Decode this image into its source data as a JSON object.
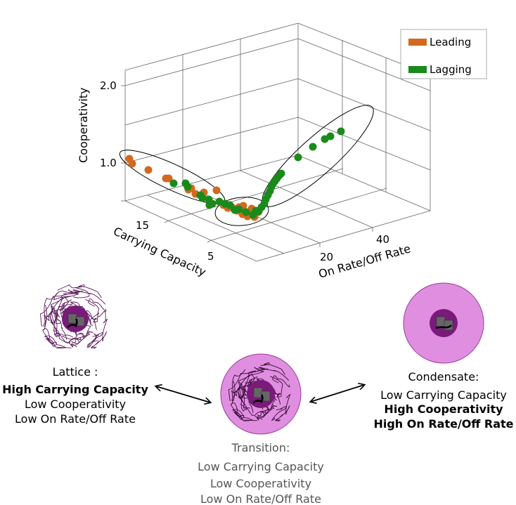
{
  "chart_data": {
    "type": "scatter3d",
    "axes": {
      "x_label": "On Rate/Off Rate",
      "y_label": "Carrying Capacity",
      "z_label": "Cooperativity",
      "x_ticks": [
        "20",
        "40"
      ],
      "y_ticks": [
        "5",
        "15"
      ],
      "z_ticks": [
        "1.0",
        "2.0"
      ]
    },
    "legend": {
      "placement": "top-right",
      "entries": [
        {
          "label": "Leading",
          "color": "#d2691e"
        },
        {
          "label": "Lagging",
          "color": "#1a8a1a"
        }
      ]
    },
    "series": [
      {
        "name": "Leading",
        "color": "#d2691e",
        "points": [
          [
            184,
            226
          ],
          [
            188,
            233
          ],
          [
            211,
            242
          ],
          [
            236,
            254
          ],
          [
            240,
            254
          ],
          [
            268,
            270
          ],
          [
            272,
            268
          ],
          [
            278,
            276
          ],
          [
            290,
            274
          ],
          [
            308,
            271
          ],
          [
            318,
            292
          ],
          [
            324,
            296
          ],
          [
            331,
            296
          ],
          [
            340,
            295
          ],
          [
            346,
            293
          ],
          [
            356,
            302
          ],
          [
            358,
            297
          ],
          [
            362,
            309
          ],
          [
            367,
            302
          ],
          [
            345,
            305
          ],
          [
            337,
            300
          ],
          [
            352,
            308
          ]
        ]
      },
      {
        "name": "Lagging",
        "color": "#1a8a1a",
        "points": [
          [
            247,
            261
          ],
          [
            264,
            261
          ],
          [
            267,
            266
          ],
          [
            285,
            278
          ],
          [
            288,
            282
          ],
          [
            297,
            284
          ],
          [
            298,
            292
          ],
          [
            302,
            290
          ],
          [
            312,
            287
          ],
          [
            320,
            290
          ],
          [
            327,
            292
          ],
          [
            334,
            299
          ],
          [
            340,
            298
          ],
          [
            350,
            302
          ],
          [
            360,
            306
          ],
          [
            364,
            300
          ],
          [
            368,
            301
          ],
          [
            372,
            295
          ],
          [
            376,
            290
          ],
          [
            378,
            284
          ],
          [
            381,
            278
          ],
          [
            384,
            272
          ],
          [
            386,
            266
          ],
          [
            388,
            262
          ],
          [
            391,
            258
          ],
          [
            394,
            254
          ],
          [
            397,
            250
          ],
          [
            400,
            247
          ],
          [
            424,
            224
          ],
          [
            445,
            209
          ],
          [
            462,
            198
          ],
          [
            470,
            194
          ],
          [
            485,
            187
          ]
        ]
      }
    ]
  },
  "states": {
    "lattice": {
      "title": "Lattice :",
      "line1": "High Carrying Capacity",
      "line2": "Low Cooperativity",
      "line3": "Low On Rate/Off Rate"
    },
    "transition": {
      "title": "Transition:",
      "line1": "Low Carrying Capacity",
      "line2": "Low Cooperativity",
      "line3": "Low On Rate/Off Rate"
    },
    "condensate": {
      "title": "Condensate:",
      "line1": "Low Carrying Capacity",
      "line2": "High Cooperativity",
      "line3": "High On Rate/Off Rate"
    }
  },
  "colors": {
    "condensate_fill": "#e08fe0",
    "core_fill": "#7a1a7a",
    "fiber_stroke": "#5a1a5a"
  }
}
